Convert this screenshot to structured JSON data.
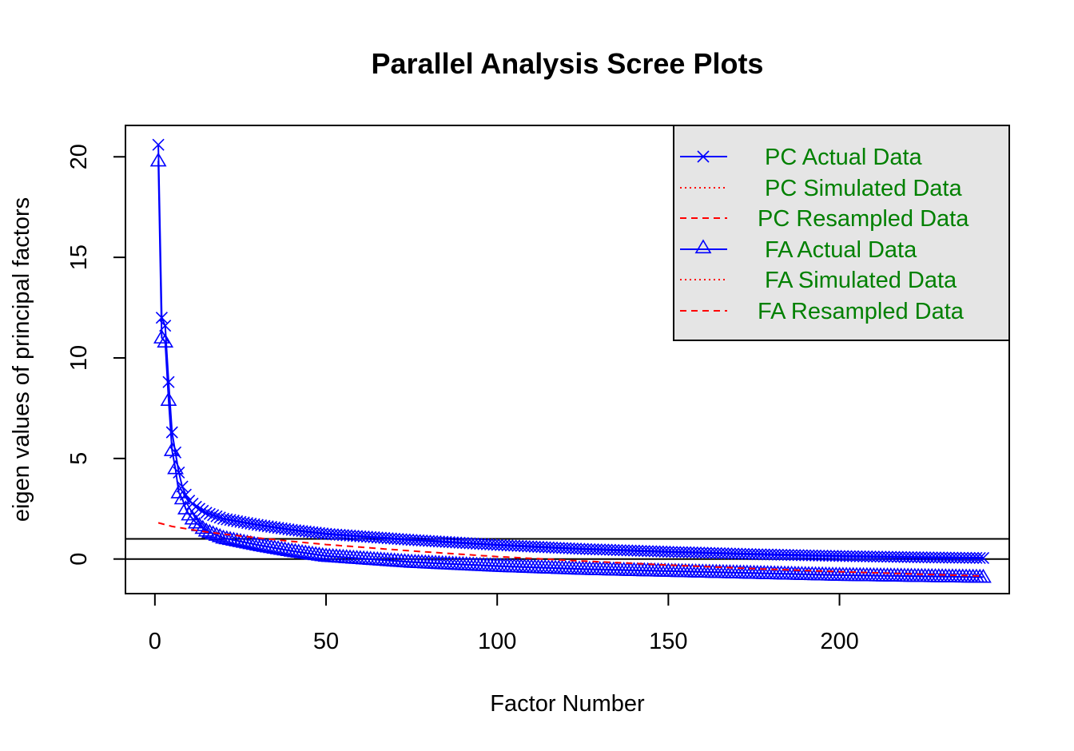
{
  "chart_data": {
    "type": "line",
    "title": "Parallel Analysis Scree Plots",
    "xlabel": "Factor Number",
    "ylabel": "eigen values of principal factors",
    "xlim": [
      -8.6,
      249.6
    ],
    "ylim": [
      -1.72,
      21.56
    ],
    "x_ticks": [
      0,
      50,
      100,
      150,
      200
    ],
    "y_ticks": [
      0,
      5,
      10,
      15,
      20
    ],
    "reference_lines": [
      1,
      0
    ],
    "n_factors": 242,
    "colors": {
      "actual": "#0000ff",
      "simulated": "#ff0000",
      "resampled": "#ff0000",
      "legend_text": "#008000",
      "legend_bg": "#e5e5e5",
      "axis": "#000000"
    },
    "legend": {
      "position": "top-right",
      "entries": [
        {
          "label": "PC  Actual Data",
          "color": "#0000ff",
          "line": "solid",
          "marker": "x-mark"
        },
        {
          "label": "PC  Simulated Data",
          "color": "#ff0000",
          "line": "dotted",
          "marker": "none"
        },
        {
          "label": "PC  Resampled Data",
          "color": "#ff0000",
          "line": "dashed",
          "marker": "none"
        },
        {
          "label": "FA  Actual Data",
          "color": "#0000ff",
          "line": "solid",
          "marker": "triangle"
        },
        {
          "label": "FA  Simulated Data",
          "color": "#ff0000",
          "line": "dotted",
          "marker": "none"
        },
        {
          "label": "FA  Resampled Data",
          "color": "#ff0000",
          "line": "dashed",
          "marker": "none"
        }
      ]
    },
    "series": [
      {
        "name": "PC  Actual Data",
        "marker": "x-mark",
        "line": "solid",
        "color": "#0000ff",
        "x": [
          1,
          2,
          3,
          4,
          5,
          6,
          7,
          8,
          9,
          10,
          12,
          15,
          20,
          30,
          40,
          50,
          75,
          100,
          125,
          150,
          175,
          200,
          225,
          242
        ],
        "values": [
          20.6,
          12.0,
          11.6,
          8.8,
          6.3,
          5.3,
          4.3,
          3.6,
          3.2,
          2.9,
          2.6,
          2.3,
          2.0,
          1.7,
          1.45,
          1.25,
          0.95,
          0.7,
          0.5,
          0.36,
          0.24,
          0.15,
          0.08,
          0.05
        ]
      },
      {
        "name": "FA  Actual Data",
        "marker": "triangle",
        "line": "solid",
        "color": "#0000ff",
        "x": [
          1,
          2,
          3,
          4,
          5,
          6,
          7,
          8,
          9,
          10,
          12,
          15,
          20,
          30,
          40,
          50,
          75,
          100,
          125,
          150,
          175,
          200,
          225,
          242
        ],
        "values": [
          19.8,
          11.0,
          10.8,
          7.9,
          5.4,
          4.5,
          3.3,
          3.0,
          2.5,
          2.2,
          1.8,
          1.4,
          1.05,
          0.7,
          0.4,
          0.15,
          -0.15,
          -0.35,
          -0.5,
          -0.6,
          -0.7,
          -0.8,
          -0.86,
          -0.9
        ]
      },
      {
        "name": "PC  Resampled Data",
        "marker": "none",
        "line": "dashed",
        "color": "#ff0000",
        "x": [
          1,
          5,
          10,
          15,
          20,
          30,
          40,
          50,
          75,
          100,
          125,
          150,
          175,
          200,
          225,
          242
        ],
        "values": [
          1.8,
          1.62,
          1.48,
          1.35,
          1.24,
          1.05,
          0.88,
          0.72,
          0.4,
          0.12,
          -0.1,
          -0.3,
          -0.48,
          -0.63,
          -0.76,
          -0.85
        ]
      }
    ]
  }
}
